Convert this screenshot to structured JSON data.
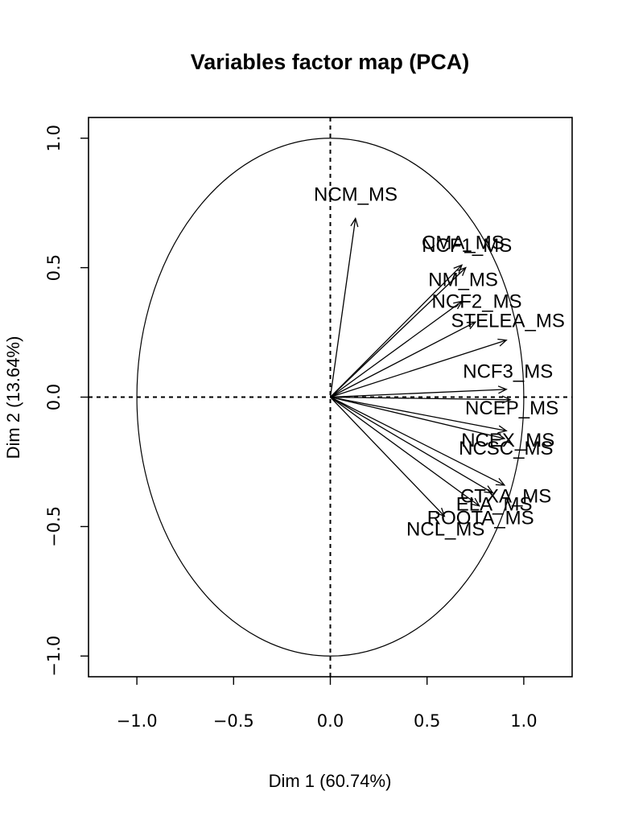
{
  "chart_data": {
    "type": "scatter",
    "title": "Variables factor map (PCA)",
    "xlabel": "Dim 1 (60.74%)",
    "ylabel": "Dim 2 (13.64%)",
    "xlim": [
      -1.25,
      1.25
    ],
    "ylim": [
      -1.08,
      1.08
    ],
    "x_ticks": [
      -1.0,
      -0.5,
      0.0,
      0.5,
      1.0
    ],
    "x_tick_labels": [
      "−1.0",
      "−0.5",
      "0.0",
      "0.5",
      "1.0"
    ],
    "y_ticks": [
      -1.0,
      -0.5,
      0.0,
      0.5,
      1.0
    ],
    "y_tick_labels": [
      "−1.0",
      "−0.5",
      "0.0",
      "0.5",
      "1.0"
    ],
    "unit_circle": true,
    "reference_lines": [
      0,
      0
    ],
    "grid": false,
    "legend": "none",
    "variables": [
      {
        "label": "NCM_MS",
        "x": 0.13,
        "y": 0.69
      },
      {
        "label": "CMA_MS",
        "x": 0.68,
        "y": 0.51
      },
      {
        "label": "NCF1_MS",
        "x": 0.7,
        "y": 0.5
      },
      {
        "label": "NM_MS",
        "x": 0.68,
        "y": 0.37
      },
      {
        "label": "NCF2_MS",
        "x": 0.75,
        "y": 0.29
      },
      {
        "label": "STELEA_MS",
        "x": 0.91,
        "y": 0.22
      },
      {
        "label": "NCF3_MS",
        "x": 0.91,
        "y": 0.03
      },
      {
        "label": "NCEP_MS",
        "x": 0.93,
        "y": -0.01
      },
      {
        "label": "NCEX_MS",
        "x": 0.91,
        "y": -0.13
      },
      {
        "label": "NCSC_MS",
        "x": 0.9,
        "y": -0.16
      },
      {
        "label": "CTXA_MS",
        "x": 0.9,
        "y": -0.34
      },
      {
        "label": "ROOTA_MS",
        "x": 0.77,
        "y": -0.42
      },
      {
        "label": "ELA_MS",
        "x": 0.84,
        "y": -0.37
      },
      {
        "label": "NCL_MS",
        "x": 0.59,
        "y": -0.46
      }
    ]
  }
}
